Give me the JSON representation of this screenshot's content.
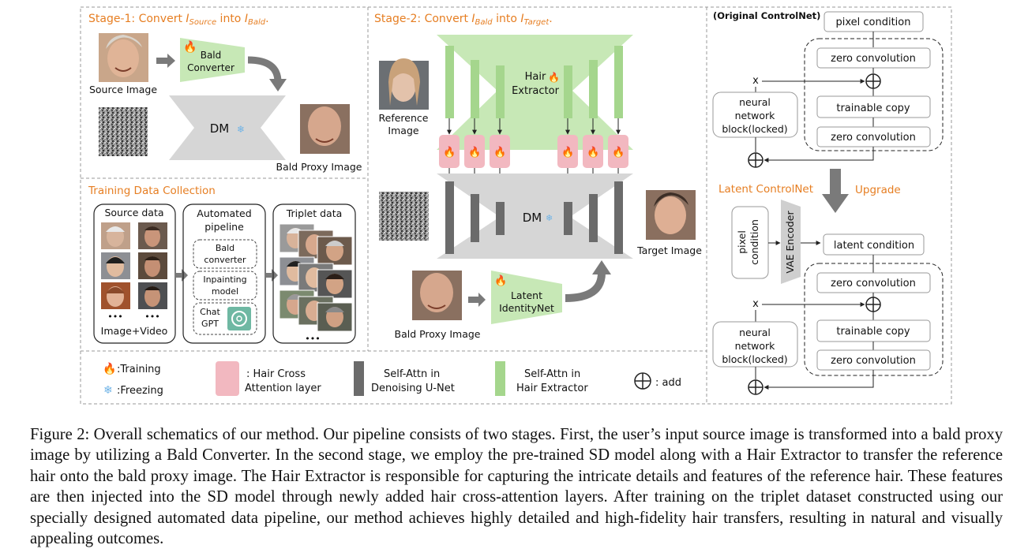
{
  "stage1": {
    "title_prefix": "Stage-1: Convert ",
    "var_a": "I",
    "sub_a": "Source",
    "mid": " into ",
    "var_b": "I",
    "sub_b": "Bald",
    "end": ".",
    "source_label": "Source Image",
    "converter_line1": "Bald",
    "converter_line2": "Converter",
    "dm_label": "DM",
    "bald_proxy_label": "Bald Proxy Image"
  },
  "stage2": {
    "title_prefix": "Stage-2: Convert ",
    "var_a": "I",
    "sub_a": "Bald",
    "mid": " into ",
    "var_b": "I",
    "sub_b": "Target",
    "end": ".",
    "reference_line1": "Reference",
    "reference_line2": "Image",
    "extractor_line1": "Hair",
    "extractor_line2": "Extractor",
    "dm_label": "DM",
    "target_label": "Target Image",
    "bald_proxy_label": "Bald Proxy Image",
    "identity_line1": "Latent",
    "identity_line2": "IdentityNet"
  },
  "training": {
    "title": "Training Data Collection",
    "source_title": "Source data",
    "source_footer_dots": "•••",
    "source_footer": "Image+Video",
    "pipeline_title_1": "Automated",
    "pipeline_title_2": "pipeline",
    "step1_line1": "Bald",
    "step1_line2": "converter",
    "step2_line1": "Inpainting",
    "step2_line2": "model",
    "step3_line1": "Chat",
    "step3_line2": "GPT",
    "triplet_title": "Triplet data",
    "triplet_dots": "•••"
  },
  "legend": {
    "training": ":Training",
    "freezing": ":Freezing",
    "cross_line1": ": Hair Cross",
    "cross_line2": "Attention layer",
    "self_unet_line1": "Self-Attn in",
    "self_unet_line2": "Denoising U-Net",
    "self_hair_line1": "Self-Attn in",
    "self_hair_line2": "Hair Extractor",
    "add": ": add"
  },
  "controlnet": {
    "original_title": "(Original ControlNet)",
    "pixel_condition": "pixel condition",
    "zero_conv": "zero convolution",
    "trainable_copy": "trainable copy",
    "x": "x",
    "nn_line1": "neural",
    "nn_line2": "network",
    "nn_line3": "block(locked)",
    "latent_title": "Latent ControlNet",
    "upgrade": "Upgrade",
    "pixel_cond_vert_1": "pixel",
    "pixel_cond_vert_2": "condition",
    "vae_encoder": "VAE Encoder",
    "latent_condition": "latent condition"
  },
  "caption": "Figure 2: Overall schematics of our method. Our pipeline consists of two stages. First, the user’s input source image is transformed into a bald proxy image by utilizing a Bald Converter. In the second stage, we employ the pre-trained SD model along with a Hair Extractor to transfer the reference hair onto the bald proxy image. The Hair Extractor is responsible for capturing the intricate details and features of the reference hair. These features are then injected into the SD model through newly added hair cross-attention layers. After training on the triplet dataset constructed using our specially designed automated data pipeline, our method achieves highly detailed and high-fidelity hair transfers, resulting in natural and visually appealing outcomes.",
  "colors": {
    "orange": "#e67e22",
    "green": "#b7e4a5",
    "gray": "#d4d4d4",
    "dark_gray": "#6b6b6b",
    "pink": "#f2b8c0"
  }
}
